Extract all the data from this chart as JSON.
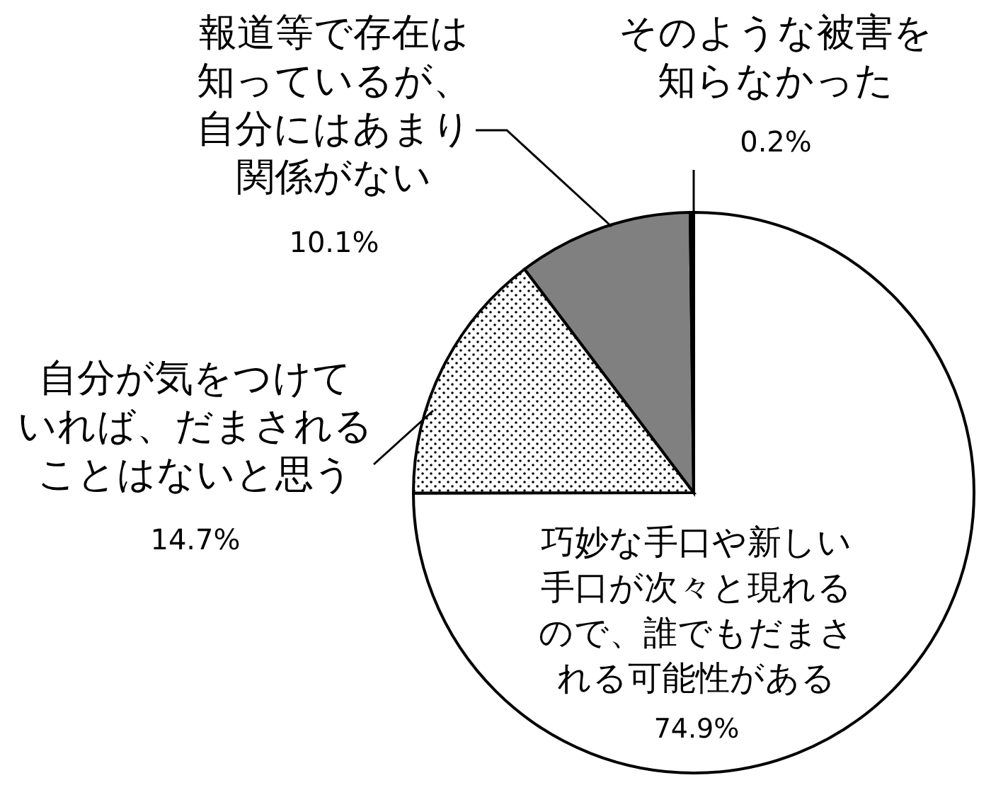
{
  "chart_data": {
    "type": "pie",
    "categories": [
      "巧妙な手口や新しい手口が次々と現れるので、誰でもだまされる可能性がある",
      "自分が気をつけていれば、だまされることはないと思う",
      "報道等で存在は知っているが、自分にはあまり関係がない",
      "そのような被害を知らなかった"
    ],
    "values": [
      74.9,
      14.7,
      10.1,
      0.2
    ],
    "value_labels": [
      "74.9%",
      "14.7%",
      "10.1%",
      "0.2%"
    ],
    "colors": [
      "#ffffff",
      "#ffffff",
      "#808080",
      "#000000"
    ]
  }
}
